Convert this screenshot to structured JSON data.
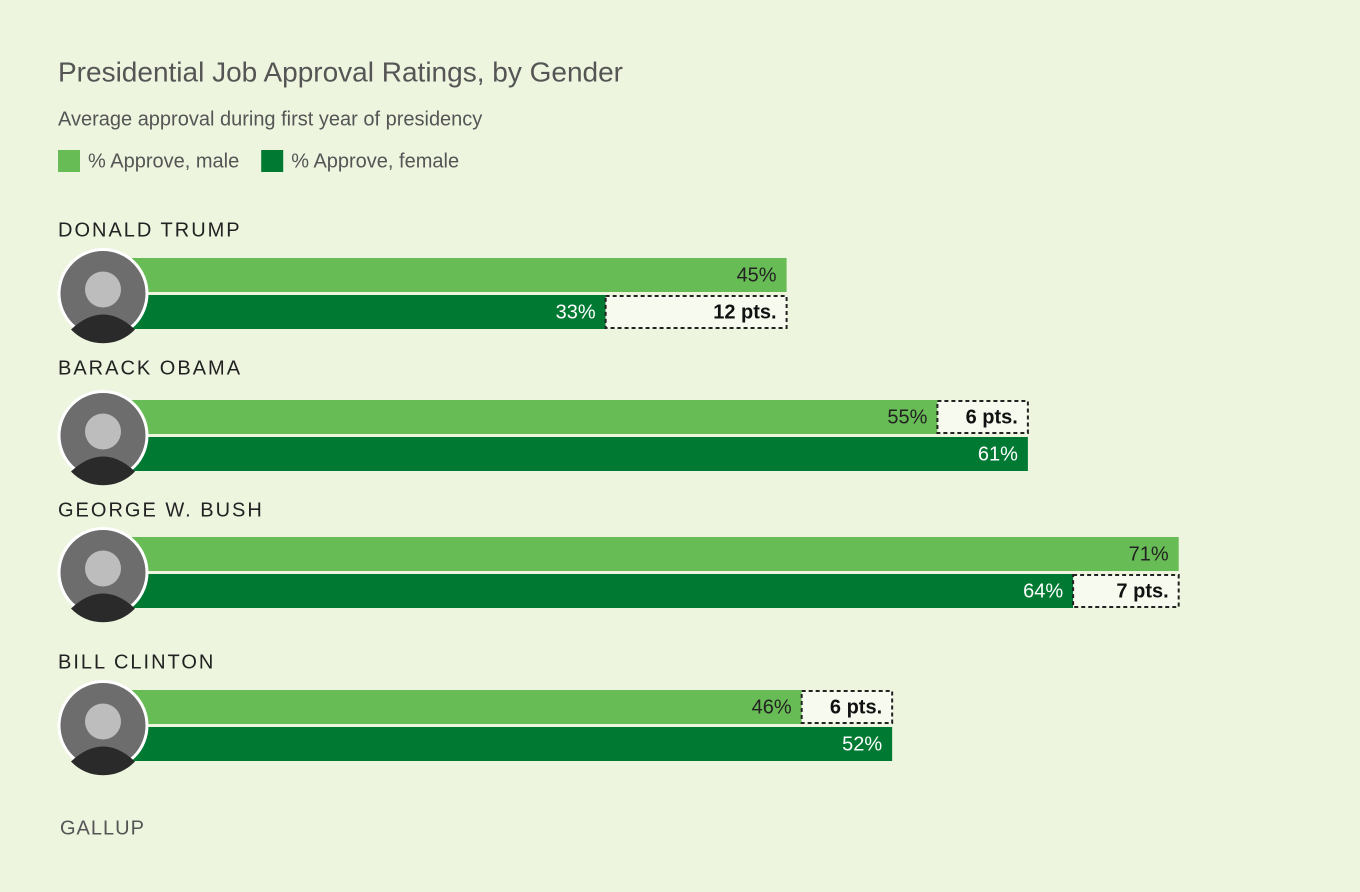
{
  "chart_data": {
    "type": "bar",
    "orientation": "horizontal",
    "title": "Presidential Job Approval Ratings, by Gender",
    "subtitle": "Average approval during first year of presidency",
    "categories": [
      "DONALD TRUMP",
      "BARACK OBAMA",
      "GEORGE W. BUSH",
      "BILL CLINTON"
    ],
    "series": [
      {
        "name": "% Approve, male",
        "color": "#68bc55",
        "values": [
          45,
          55,
          71,
          46
        ],
        "value_labels": [
          "45%",
          "55%",
          "71%",
          "46%"
        ]
      },
      {
        "name": "% Approve, female",
        "color": "#007a33",
        "values": [
          33,
          61,
          64,
          52
        ],
        "value_labels": [
          "33%",
          "61%",
          "64%",
          "52%"
        ]
      }
    ],
    "gaps": [
      12,
      6,
      7,
      6
    ],
    "gap_labels": [
      "12 pts.",
      "6 pts.",
      "7 pts.",
      "6 pts."
    ],
    "source": "GALLUP"
  }
}
